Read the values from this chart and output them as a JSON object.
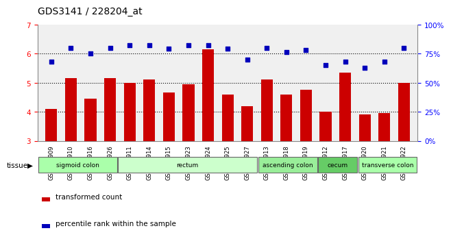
{
  "title": "GDS3141 / 228204_at",
  "samples": [
    "GSM234909",
    "GSM234910",
    "GSM234916",
    "GSM234926",
    "GSM234911",
    "GSM234914",
    "GSM234915",
    "GSM234923",
    "GSM234924",
    "GSM234925",
    "GSM234927",
    "GSM234913",
    "GSM234918",
    "GSM234919",
    "GSM234912",
    "GSM234917",
    "GSM234920",
    "GSM234921",
    "GSM234922"
  ],
  "bar_values": [
    4.1,
    5.15,
    4.45,
    5.15,
    5.0,
    5.1,
    4.65,
    4.95,
    6.15,
    4.6,
    4.2,
    5.1,
    4.6,
    4.75,
    4.0,
    5.35,
    3.9,
    3.95,
    5.0
  ],
  "dot_values": [
    68,
    80,
    75,
    80,
    82,
    82,
    79,
    82,
    82,
    79,
    70,
    80,
    76,
    78,
    65,
    68,
    63,
    68,
    80
  ],
  "ylim_left": [
    3,
    7
  ],
  "ylim_right": [
    0,
    100
  ],
  "yticks_left": [
    3,
    4,
    5,
    6,
    7
  ],
  "yticks_right": [
    0,
    25,
    50,
    75,
    100
  ],
  "ytick_labels_right": [
    "0%",
    "25%",
    "50%",
    "75%",
    "100%"
  ],
  "bar_color": "#cc0000",
  "dot_color": "#0000bb",
  "tissue_groups": [
    {
      "label": "sigmoid colon",
      "start": 0,
      "end": 4,
      "color": "#aaffaa"
    },
    {
      "label": "rectum",
      "start": 4,
      "end": 11,
      "color": "#ccffcc"
    },
    {
      "label": "ascending colon",
      "start": 11,
      "end": 14,
      "color": "#99ee99"
    },
    {
      "label": "cecum",
      "start": 14,
      "end": 16,
      "color": "#66cc66"
    },
    {
      "label": "transverse colon",
      "start": 16,
      "end": 19,
      "color": "#aaffaa"
    }
  ],
  "legend_bar_label": "transformed count",
  "legend_dot_label": "percentile rank within the sample"
}
